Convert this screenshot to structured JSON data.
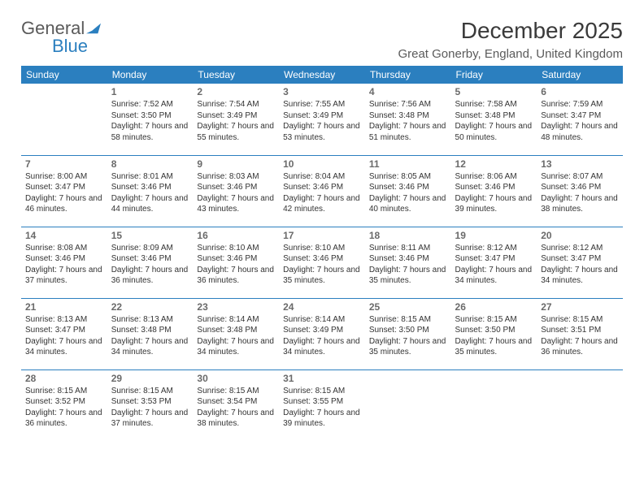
{
  "brand": {
    "part1": "General",
    "part2": "Blue"
  },
  "title": "December 2025",
  "location": "Great Gonerby, England, United Kingdom",
  "dayHeaders": [
    "Sunday",
    "Monday",
    "Tuesday",
    "Wednesday",
    "Thursday",
    "Friday",
    "Saturday"
  ],
  "colors": {
    "headerBg": "#2b7fbf",
    "headerText": "#ffffff",
    "border": "#2b7fbf",
    "dayNum": "#6a6a6a",
    "infoText": "#333333"
  },
  "weeks": [
    [
      null,
      {
        "n": "1",
        "sunrise": "Sunrise: 7:52 AM",
        "sunset": "Sunset: 3:50 PM",
        "daylight": "Daylight: 7 hours and 58 minutes."
      },
      {
        "n": "2",
        "sunrise": "Sunrise: 7:54 AM",
        "sunset": "Sunset: 3:49 PM",
        "daylight": "Daylight: 7 hours and 55 minutes."
      },
      {
        "n": "3",
        "sunrise": "Sunrise: 7:55 AM",
        "sunset": "Sunset: 3:49 PM",
        "daylight": "Daylight: 7 hours and 53 minutes."
      },
      {
        "n": "4",
        "sunrise": "Sunrise: 7:56 AM",
        "sunset": "Sunset: 3:48 PM",
        "daylight": "Daylight: 7 hours and 51 minutes."
      },
      {
        "n": "5",
        "sunrise": "Sunrise: 7:58 AM",
        "sunset": "Sunset: 3:48 PM",
        "daylight": "Daylight: 7 hours and 50 minutes."
      },
      {
        "n": "6",
        "sunrise": "Sunrise: 7:59 AM",
        "sunset": "Sunset: 3:47 PM",
        "daylight": "Daylight: 7 hours and 48 minutes."
      }
    ],
    [
      {
        "n": "7",
        "sunrise": "Sunrise: 8:00 AM",
        "sunset": "Sunset: 3:47 PM",
        "daylight": "Daylight: 7 hours and 46 minutes."
      },
      {
        "n": "8",
        "sunrise": "Sunrise: 8:01 AM",
        "sunset": "Sunset: 3:46 PM",
        "daylight": "Daylight: 7 hours and 44 minutes."
      },
      {
        "n": "9",
        "sunrise": "Sunrise: 8:03 AM",
        "sunset": "Sunset: 3:46 PM",
        "daylight": "Daylight: 7 hours and 43 minutes."
      },
      {
        "n": "10",
        "sunrise": "Sunrise: 8:04 AM",
        "sunset": "Sunset: 3:46 PM",
        "daylight": "Daylight: 7 hours and 42 minutes."
      },
      {
        "n": "11",
        "sunrise": "Sunrise: 8:05 AM",
        "sunset": "Sunset: 3:46 PM",
        "daylight": "Daylight: 7 hours and 40 minutes."
      },
      {
        "n": "12",
        "sunrise": "Sunrise: 8:06 AM",
        "sunset": "Sunset: 3:46 PM",
        "daylight": "Daylight: 7 hours and 39 minutes."
      },
      {
        "n": "13",
        "sunrise": "Sunrise: 8:07 AM",
        "sunset": "Sunset: 3:46 PM",
        "daylight": "Daylight: 7 hours and 38 minutes."
      }
    ],
    [
      {
        "n": "14",
        "sunrise": "Sunrise: 8:08 AM",
        "sunset": "Sunset: 3:46 PM",
        "daylight": "Daylight: 7 hours and 37 minutes."
      },
      {
        "n": "15",
        "sunrise": "Sunrise: 8:09 AM",
        "sunset": "Sunset: 3:46 PM",
        "daylight": "Daylight: 7 hours and 36 minutes."
      },
      {
        "n": "16",
        "sunrise": "Sunrise: 8:10 AM",
        "sunset": "Sunset: 3:46 PM",
        "daylight": "Daylight: 7 hours and 36 minutes."
      },
      {
        "n": "17",
        "sunrise": "Sunrise: 8:10 AM",
        "sunset": "Sunset: 3:46 PM",
        "daylight": "Daylight: 7 hours and 35 minutes."
      },
      {
        "n": "18",
        "sunrise": "Sunrise: 8:11 AM",
        "sunset": "Sunset: 3:46 PM",
        "daylight": "Daylight: 7 hours and 35 minutes."
      },
      {
        "n": "19",
        "sunrise": "Sunrise: 8:12 AM",
        "sunset": "Sunset: 3:47 PM",
        "daylight": "Daylight: 7 hours and 34 minutes."
      },
      {
        "n": "20",
        "sunrise": "Sunrise: 8:12 AM",
        "sunset": "Sunset: 3:47 PM",
        "daylight": "Daylight: 7 hours and 34 minutes."
      }
    ],
    [
      {
        "n": "21",
        "sunrise": "Sunrise: 8:13 AM",
        "sunset": "Sunset: 3:47 PM",
        "daylight": "Daylight: 7 hours and 34 minutes."
      },
      {
        "n": "22",
        "sunrise": "Sunrise: 8:13 AM",
        "sunset": "Sunset: 3:48 PM",
        "daylight": "Daylight: 7 hours and 34 minutes."
      },
      {
        "n": "23",
        "sunrise": "Sunrise: 8:14 AM",
        "sunset": "Sunset: 3:48 PM",
        "daylight": "Daylight: 7 hours and 34 minutes."
      },
      {
        "n": "24",
        "sunrise": "Sunrise: 8:14 AM",
        "sunset": "Sunset: 3:49 PM",
        "daylight": "Daylight: 7 hours and 34 minutes."
      },
      {
        "n": "25",
        "sunrise": "Sunrise: 8:15 AM",
        "sunset": "Sunset: 3:50 PM",
        "daylight": "Daylight: 7 hours and 35 minutes."
      },
      {
        "n": "26",
        "sunrise": "Sunrise: 8:15 AM",
        "sunset": "Sunset: 3:50 PM",
        "daylight": "Daylight: 7 hours and 35 minutes."
      },
      {
        "n": "27",
        "sunrise": "Sunrise: 8:15 AM",
        "sunset": "Sunset: 3:51 PM",
        "daylight": "Daylight: 7 hours and 36 minutes."
      }
    ],
    [
      {
        "n": "28",
        "sunrise": "Sunrise: 8:15 AM",
        "sunset": "Sunset: 3:52 PM",
        "daylight": "Daylight: 7 hours and 36 minutes."
      },
      {
        "n": "29",
        "sunrise": "Sunrise: 8:15 AM",
        "sunset": "Sunset: 3:53 PM",
        "daylight": "Daylight: 7 hours and 37 minutes."
      },
      {
        "n": "30",
        "sunrise": "Sunrise: 8:15 AM",
        "sunset": "Sunset: 3:54 PM",
        "daylight": "Daylight: 7 hours and 38 minutes."
      },
      {
        "n": "31",
        "sunrise": "Sunrise: 8:15 AM",
        "sunset": "Sunset: 3:55 PM",
        "daylight": "Daylight: 7 hours and 39 minutes."
      },
      null,
      null,
      null
    ]
  ]
}
